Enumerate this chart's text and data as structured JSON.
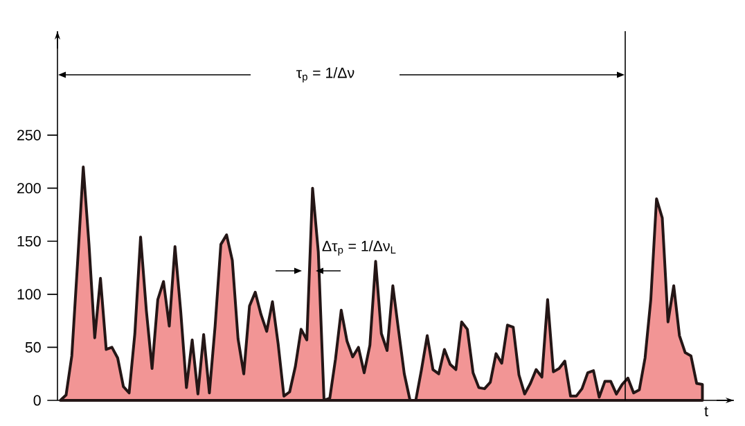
{
  "chart_data": {
    "type": "area",
    "categories": [
      null,
      null,
      null,
      null,
      null,
      null,
      null,
      null,
      null,
      null,
      null,
      null,
      null,
      null,
      null,
      null,
      null,
      null,
      null,
      null,
      null,
      null,
      null,
      null,
      null,
      null,
      null,
      null,
      null,
      null,
      null,
      null,
      null,
      null,
      null,
      null,
      null,
      null,
      null,
      null,
      null,
      null,
      null,
      null,
      null,
      null,
      null,
      null,
      null,
      null,
      null,
      null,
      null,
      null,
      null,
      null,
      null,
      null,
      null,
      null,
      null,
      null,
      null,
      null,
      null,
      null,
      null,
      null,
      null,
      null,
      null,
      null,
      null,
      null,
      null,
      null,
      null,
      null,
      null,
      null,
      null,
      null,
      null,
      null,
      null,
      null,
      null,
      null,
      null,
      null,
      null,
      null,
      null,
      null,
      null,
      null,
      null,
      null,
      null,
      null,
      null,
      null,
      null,
      null,
      null,
      null,
      null,
      null,
      null,
      null,
      null,
      null,
      null,
      null,
      null,
      null,
      null,
      null
    ],
    "series": [
      {
        "color": "#f29595",
        "values": [
          0,
          5,
          42,
          129,
          220,
          147,
          59,
          115,
          48,
          50,
          40,
          13,
          7,
          63,
          154,
          85,
          30,
          95,
          112,
          70,
          145,
          84,
          12,
          57,
          6,
          62,
          7,
          70,
          147,
          156,
          132,
          58,
          25,
          89,
          102,
          81,
          65,
          93,
          53,
          4,
          8,
          32,
          67,
          57,
          200,
          140,
          0,
          2,
          39,
          85,
          56,
          41,
          50,
          26,
          52,
          131,
          63,
          47,
          108,
          66,
          25,
          0,
          0,
          29,
          61,
          29,
          25,
          48,
          34,
          29,
          74,
          67,
          26,
          12,
          11,
          17,
          44,
          35,
          71,
          69,
          24,
          6,
          16,
          29,
          22,
          95,
          27,
          30,
          37,
          4,
          4,
          11,
          26,
          28,
          3,
          18,
          18,
          6,
          15,
          21,
          7,
          10,
          40,
          95,
          190,
          172,
          74,
          108,
          61,
          45,
          42,
          16,
          15,
          null,
          null,
          null,
          null,
          null
        ]
      }
    ],
    "ylim": [
      0,
      348
    ],
    "yticks": [
      0,
      50,
      100,
      150,
      200,
      250
    ],
    "tick_labels": "y",
    "annotations": [
      "τ$_{p}$ = 1/Δν",
      "Δτ$_{p}$ = 1/Δν$_{L}$",
      "t"
    ]
  }
}
